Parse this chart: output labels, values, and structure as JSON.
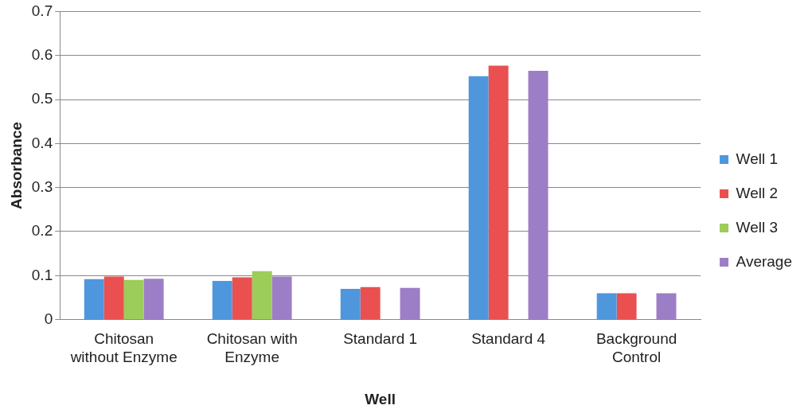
{
  "chart_data": {
    "type": "bar",
    "xlabel": "Well",
    "ylabel": "Absorbance",
    "categories": [
      "Chitosan without Enzyme",
      "Chitosan with Enzyme",
      "Standard 1",
      "Standard 4",
      "Background Control"
    ],
    "series": [
      {
        "name": "Well 1",
        "color": "#4f97dd",
        "values": [
          0.092,
          0.088,
          0.07,
          0.553,
          0.06
        ]
      },
      {
        "name": "Well 2",
        "color": "#e9504f",
        "values": [
          0.098,
          0.096,
          0.074,
          0.577,
          0.06
        ]
      },
      {
        "name": "Well 3",
        "color": "#9ccc59",
        "values": [
          0.09,
          0.11,
          null,
          null,
          null
        ]
      },
      {
        "name": "Average",
        "color": "#9c7ec6",
        "values": [
          0.093,
          0.098,
          0.072,
          0.565,
          0.06
        ]
      }
    ],
    "ylim": [
      0,
      0.7
    ],
    "yticks": [
      0,
      0.1,
      0.2,
      0.3,
      0.4,
      0.5,
      0.6,
      0.7
    ],
    "grid": "y",
    "legend": "right"
  }
}
